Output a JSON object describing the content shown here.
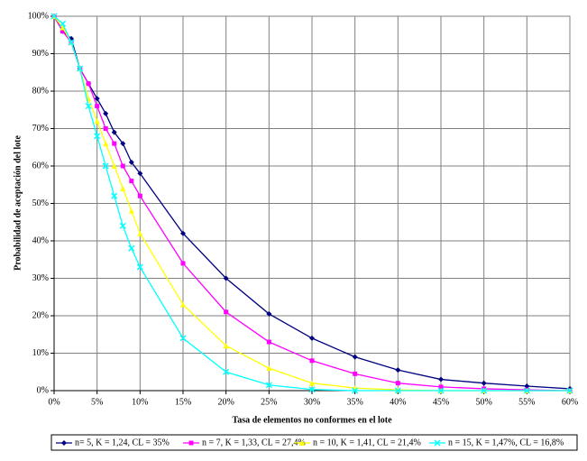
{
  "chart_data": {
    "type": "line",
    "x_label": "Tasa de elementos no conformes en el lote",
    "y_label": "Probabilidad de aceptación del lote",
    "x": [
      0,
      1,
      2,
      3,
      4,
      5,
      6,
      7,
      8,
      9,
      10,
      15,
      20,
      25,
      30,
      35,
      40,
      45,
      50,
      55,
      60
    ],
    "series": [
      {
        "name": "n= 5, K = 1,24, CL = 35%",
        "color": "#000080",
        "marker": "diamond",
        "values": [
          100,
          96,
          94,
          86,
          82,
          78,
          74,
          69,
          66,
          61,
          58,
          42,
          30,
          20.5,
          14,
          9,
          5.5,
          3,
          2,
          1.2,
          0.5
        ]
      },
      {
        "name": "n = 7, K = 1,33, CL = 27,4%",
        "color": "#ff00ff",
        "marker": "square",
        "values": [
          100,
          96,
          93,
          86,
          82,
          76,
          70,
          66,
          60,
          56,
          52,
          34,
          21,
          13,
          8,
          4.5,
          2,
          1,
          0.5,
          0.2,
          0
        ]
      },
      {
        "name": "n = 10, K = 1,41, CL = 21,4%",
        "color": "#ffff00",
        "marker": "triangle",
        "values": [
          100,
          97,
          93,
          86,
          78,
          72,
          66,
          60,
          54,
          48,
          42,
          23,
          12,
          6,
          2,
          0.7,
          0.2,
          0,
          0,
          0,
          0
        ]
      },
      {
        "name": "n = 15, K = 1,47%, CL = 16,8%",
        "color": "#00ffff",
        "marker": "cross",
        "values": [
          100,
          98,
          93,
          86,
          76,
          68,
          60,
          52,
          44,
          38,
          33,
          14,
          5,
          1.5,
          0.3,
          0,
          0,
          0,
          0,
          0,
          0
        ]
      }
    ],
    "xlim": [
      0,
      60
    ],
    "ylim": [
      0,
      100
    ],
    "xticks": [
      {
        "value": 0,
        "label": "0%"
      },
      {
        "value": 5,
        "label": "5%"
      },
      {
        "value": 10,
        "label": "10%"
      },
      {
        "value": 15,
        "label": "15%"
      },
      {
        "value": 20,
        "label": "20%"
      },
      {
        "value": 25,
        "label": "25%"
      },
      {
        "value": 30,
        "label": "30%"
      },
      {
        "value": 35,
        "label": "35%"
      },
      {
        "value": 40,
        "label": "40%"
      },
      {
        "value": 45,
        "label": "45%"
      },
      {
        "value": 50,
        "label": "50%"
      },
      {
        "value": 55,
        "label": "55%"
      },
      {
        "value": 60,
        "label": "60%"
      }
    ],
    "yticks": [
      {
        "value": 0,
        "label": "0%"
      },
      {
        "value": 10,
        "label": "10%"
      },
      {
        "value": 20,
        "label": "20%"
      },
      {
        "value": 30,
        "label": "30%"
      },
      {
        "value": 40,
        "label": "40%"
      },
      {
        "value": 50,
        "label": "50%"
      },
      {
        "value": 60,
        "label": "60%"
      },
      {
        "value": 70,
        "label": "70%"
      },
      {
        "value": 80,
        "label": "80%"
      },
      {
        "value": 90,
        "label": "90%"
      },
      {
        "value": 100,
        "label": "100%"
      }
    ],
    "grid": true
  }
}
